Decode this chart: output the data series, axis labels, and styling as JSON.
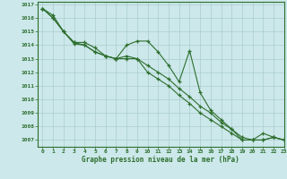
{
  "title": "Graphe pression niveau de la mer (hPa)",
  "background_color": "#cce8ea",
  "grid_color": "#aacccc",
  "line_color": "#2d6e2d",
  "xlim": [
    -0.5,
    23
  ],
  "ylim": [
    1006.5,
    1017.2
  ],
  "yticks": [
    1007,
    1008,
    1009,
    1010,
    1011,
    1012,
    1013,
    1014,
    1015,
    1016,
    1017
  ],
  "xticks": [
    0,
    1,
    2,
    3,
    4,
    5,
    6,
    7,
    8,
    9,
    10,
    11,
    12,
    13,
    14,
    15,
    16,
    17,
    18,
    19,
    20,
    21,
    22,
    23
  ],
  "series": [
    [
      1016.7,
      1016.2,
      1015.0,
      1014.2,
      1014.2,
      1013.8,
      1013.2,
      1013.0,
      1014.0,
      1014.3,
      1014.3,
      1013.5,
      1012.5,
      1011.3,
      1013.6,
      1010.5,
      1009.2,
      1008.5,
      1007.8,
      1007.2,
      1007.0,
      1007.5,
      1007.2,
      1007.0
    ],
    [
      1016.7,
      1016.0,
      1015.0,
      1014.1,
      1014.0,
      1013.5,
      1013.2,
      1013.0,
      1013.0,
      1013.0,
      1012.5,
      1012.0,
      1011.5,
      1010.8,
      1010.2,
      1009.5,
      1009.0,
      1008.3,
      1007.8,
      1007.0,
      1007.0,
      1007.0,
      1007.2,
      1007.0
    ],
    [
      1016.7,
      1016.0,
      1015.0,
      1014.2,
      1014.0,
      1013.5,
      1013.2,
      1013.0,
      1013.2,
      1013.0,
      1012.0,
      1011.5,
      1011.0,
      1010.3,
      1009.7,
      1009.0,
      1008.5,
      1008.0,
      1007.5,
      1007.0,
      1007.0,
      1007.0,
      1007.2,
      1007.0
    ]
  ]
}
